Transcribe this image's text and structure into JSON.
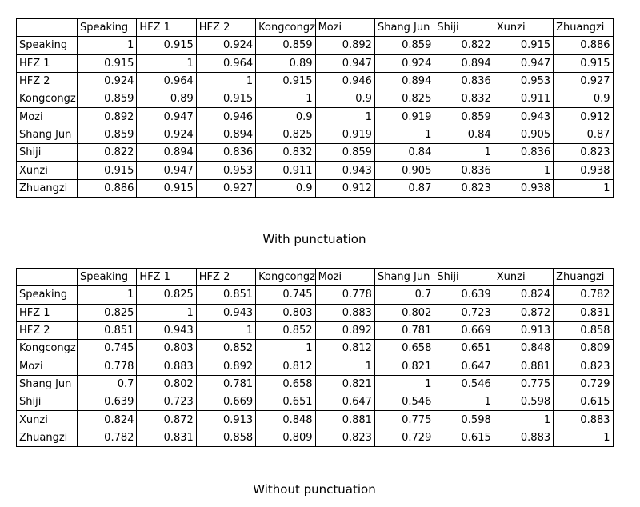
{
  "tables": [
    {
      "columns": [
        "Speaking",
        "HFZ 1",
        "HFZ 2",
        "Kongcongz",
        "Mozi",
        "Shang Jun",
        "Shiji",
        "Xunzi",
        "Zhuangzi"
      ],
      "rows": [
        {
          "label": "Speaking",
          "values": [
            1,
            0.915,
            0.924,
            0.859,
            0.892,
            0.859,
            0.822,
            0.915,
            0.886
          ]
        },
        {
          "label": "HFZ 1",
          "values": [
            0.915,
            1,
            0.964,
            0.89,
            0.947,
            0.924,
            0.894,
            0.947,
            0.915
          ]
        },
        {
          "label": "HFZ 2",
          "values": [
            0.924,
            0.964,
            1,
            0.915,
            0.946,
            0.894,
            0.836,
            0.953,
            0.927
          ]
        },
        {
          "label": "Kongcongz",
          "values": [
            0.859,
            0.89,
            0.915,
            1,
            0.9,
            0.825,
            0.832,
            0.911,
            0.9
          ]
        },
        {
          "label": "Mozi",
          "values": [
            0.892,
            0.947,
            0.946,
            0.9,
            1,
            0.919,
            0.859,
            0.943,
            0.912
          ]
        },
        {
          "label": "Shang Jun",
          "values": [
            0.859,
            0.924,
            0.894,
            0.825,
            0.919,
            1,
            0.84,
            0.905,
            0.87
          ]
        },
        {
          "label": "Shiji",
          "values": [
            0.822,
            0.894,
            0.836,
            0.832,
            0.859,
            0.84,
            1,
            0.836,
            0.823
          ]
        },
        {
          "label": "Xunzi",
          "values": [
            0.915,
            0.947,
            0.953,
            0.911,
            0.943,
            0.905,
            0.836,
            1,
            0.938
          ]
        },
        {
          "label": "Zhuangzi",
          "values": [
            0.886,
            0.915,
            0.927,
            0.9,
            0.912,
            0.87,
            0.823,
            0.938,
            1
          ]
        }
      ],
      "caption": "With punctuation"
    },
    {
      "columns": [
        "Speaking",
        "HFZ 1",
        "HFZ 2",
        "Kongcongz",
        "Mozi",
        "Shang Jun",
        "Shiji",
        "Xunzi",
        "Zhuangzi"
      ],
      "rows": [
        {
          "label": "Speaking",
          "values": [
            1,
            0.825,
            0.851,
            0.745,
            0.778,
            0.7,
            0.639,
            0.824,
            0.782
          ]
        },
        {
          "label": "HFZ 1",
          "values": [
            0.825,
            1,
            0.943,
            0.803,
            0.883,
            0.802,
            0.723,
            0.872,
            0.831
          ]
        },
        {
          "label": "HFZ 2",
          "values": [
            0.851,
            0.943,
            1,
            0.852,
            0.892,
            0.781,
            0.669,
            0.913,
            0.858
          ]
        },
        {
          "label": "Kongcongz",
          "values": [
            0.745,
            0.803,
            0.852,
            1,
            0.812,
            0.658,
            0.651,
            0.848,
            0.809
          ]
        },
        {
          "label": "Mozi",
          "values": [
            0.778,
            0.883,
            0.892,
            0.812,
            1,
            0.821,
            0.647,
            0.881,
            0.823
          ]
        },
        {
          "label": "Shang Jun",
          "values": [
            0.7,
            0.802,
            0.781,
            0.658,
            0.821,
            1,
            0.546,
            0.775,
            0.729
          ]
        },
        {
          "label": "Shiji",
          "values": [
            0.639,
            0.723,
            0.669,
            0.651,
            0.647,
            0.546,
            1,
            0.598,
            0.615
          ]
        },
        {
          "label": "Xunzi",
          "values": [
            0.824,
            0.872,
            0.913,
            0.848,
            0.881,
            0.775,
            0.598,
            1,
            0.883
          ]
        },
        {
          "label": "Zhuangzi",
          "values": [
            0.782,
            0.831,
            0.858,
            0.809,
            0.823,
            0.729,
            0.615,
            0.883,
            1
          ]
        }
      ],
      "caption": "Without punctuation"
    }
  ]
}
